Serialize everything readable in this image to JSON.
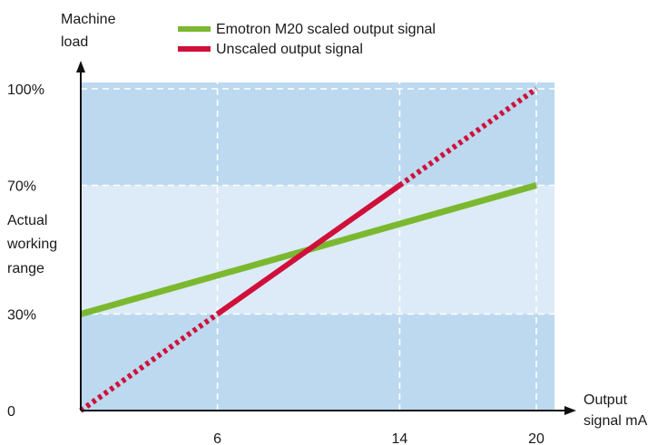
{
  "chart_data": {
    "type": "line",
    "title": "",
    "ylabel_lines": [
      "Machine",
      "load"
    ],
    "xlabel_lines": [
      "Output",
      "signal mA"
    ],
    "band_label_lines": [
      "Actual",
      "working",
      "range"
    ],
    "x_ticks": [
      {
        "value": 6,
        "label": "6"
      },
      {
        "value": 14,
        "label": "14"
      },
      {
        "value": 20,
        "label": "20"
      }
    ],
    "y_ticks": [
      {
        "value": 0,
        "label": "0"
      },
      {
        "value": 30,
        "label": "30%"
      },
      {
        "value": 70,
        "label": "70%"
      },
      {
        "value": 100,
        "label": "100%"
      }
    ],
    "xlim": [
      0,
      20.8
    ],
    "ylim": [
      0,
      100
    ],
    "working_range": [
      30,
      70
    ],
    "grid": true,
    "legend_position": "top",
    "series": [
      {
        "name": "Emotron M20 scaled output signal",
        "color": "#7cb82f",
        "style": "solid",
        "x": [
          0,
          20
        ],
        "y": [
          30,
          70
        ]
      },
      {
        "name": "Unscaled output signal",
        "color": "#d0103a",
        "style": "solid between 6 and 14, dotted outside",
        "x": [
          0,
          6,
          14,
          20
        ],
        "y": [
          0,
          30,
          70,
          100
        ]
      }
    ]
  },
  "colors": {
    "band_outer": "#bcd9ef",
    "band_inner": "#dcebf7",
    "grid": "#ffffff",
    "axis": "#111111"
  }
}
